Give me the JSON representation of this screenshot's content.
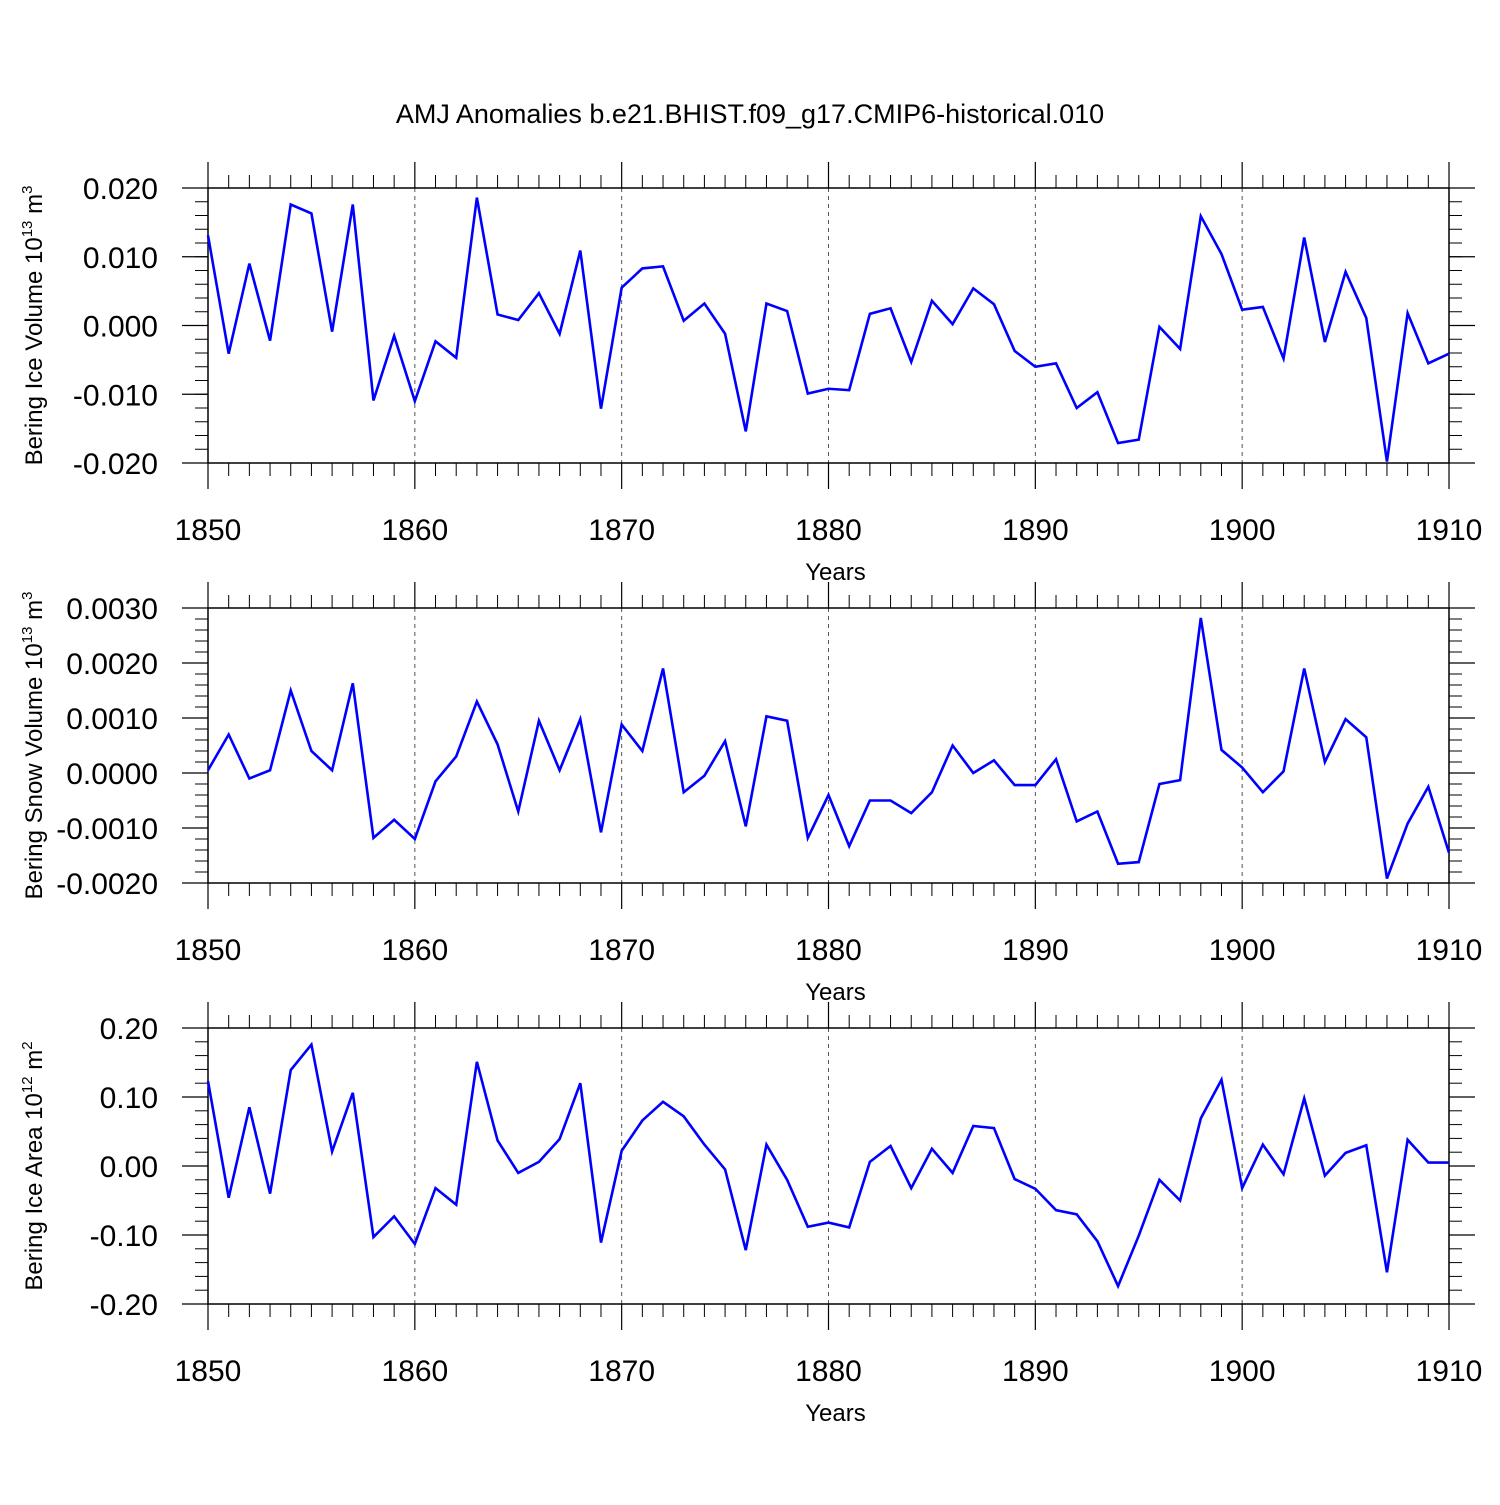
{
  "title": "AMJ Anomalies b.e21.BHIST.f09_g17.CMIP6-historical.010",
  "line_color": "#0000ff",
  "chart_data": [
    {
      "type": "line",
      "ylabel": {
        "main": "Bering Ice Volume 10",
        "exp": "13",
        "unit": " m",
        "unit_exp": "3"
      },
      "xlabel": "Years",
      "xlim": [
        1850,
        1910
      ],
      "x_ticks": [
        1850,
        1860,
        1870,
        1880,
        1890,
        1900,
        1910
      ],
      "x_tick_labels": [
        "1850",
        "1860",
        "1870",
        "1880",
        "1890",
        "1900",
        "1910"
      ],
      "ylim": [
        -0.02,
        0.02
      ],
      "y_ticks": [
        -0.02,
        -0.01,
        0,
        0.01,
        0.02
      ],
      "y_tick_labels": [
        "-0.020",
        "-0.010",
        "0.000",
        "0.010",
        "0.020"
      ],
      "y_minor_step": 0.002,
      "series": [
        {
          "name": "Bering Ice Volume",
          "values": [
            0.0131,
            -0.0041,
            0.009,
            -0.0022,
            0.0176,
            0.0163,
            -0.0009,
            0.0176,
            -0.0109,
            -0.0015,
            -0.011,
            -0.0023,
            -0.0047,
            0.0186,
            0.0016,
            0.0008,
            0.0047,
            -0.0012,
            0.0109,
            -0.0121,
            0.0055,
            0.0083,
            0.0086,
            0.0007,
            0.0032,
            -0.0012,
            -0.0154,
            0.0032,
            0.0021,
            -0.0099,
            -0.0092,
            -0.0094,
            0.0017,
            0.0025,
            -0.0053,
            0.0036,
            0.0002,
            0.0054,
            0.0031,
            -0.0037,
            -0.006,
            -0.0055,
            -0.012,
            -0.0097,
            -0.0171,
            -0.0166,
            -0.0002,
            -0.0034,
            0.0159,
            0.0104,
            0.0023,
            0.0027,
            -0.0048,
            0.0128,
            -0.0024,
            0.0078,
            0.0011,
            -0.0198,
            0.0018,
            -0.0055,
            -0.0041
          ]
        }
      ]
    },
    {
      "type": "line",
      "ylabel": {
        "main": "Bering Snow Volume 10",
        "exp": "13",
        "unit": " m",
        "unit_exp": "3"
      },
      "xlabel": "Years",
      "xlim": [
        1850,
        1910
      ],
      "x_ticks": [
        1850,
        1860,
        1870,
        1880,
        1890,
        1900,
        1910
      ],
      "x_tick_labels": [
        "1850",
        "1860",
        "1870",
        "1880",
        "1890",
        "1900",
        "1910"
      ],
      "ylim": [
        -0.002,
        0.003
      ],
      "y_ticks": [
        -0.002,
        -0.001,
        0,
        0.001,
        0.002,
        0.003
      ],
      "y_tick_labels": [
        "-0.0020",
        "-0.0010",
        "0.0000",
        "0.0010",
        "0.0020",
        "0.0030"
      ],
      "y_minor_step": 0.0002,
      "series": [
        {
          "name": "Bering Snow Volume",
          "values": [
            5e-05,
            0.0007,
            -0.0001,
            5e-05,
            0.0015,
            0.0004,
            5e-05,
            0.00163,
            -0.00118,
            -0.00085,
            -0.0012,
            -0.00015,
            0.0003,
            0.0013,
            0.00052,
            -0.0007,
            0.00095,
            5e-05,
            0.00098,
            -0.00108,
            0.00088,
            0.0004,
            0.0019,
            -0.00035,
            -5e-05,
            0.00058,
            -0.00097,
            0.00103,
            0.00095,
            -0.00118,
            -0.0004,
            -0.00133,
            -0.0005,
            -0.0005,
            -0.00073,
            -0.00035,
            0.0005,
            0.0,
            0.00023,
            -0.00022,
            -0.00022,
            0.00025,
            -0.00088,
            -0.0007,
            -0.00165,
            -0.00162,
            -0.0002,
            -0.00013,
            0.00282,
            0.00042,
            0.0001,
            -0.00035,
            3e-05,
            0.0019,
            0.0002,
            0.00098,
            0.00065,
            -0.00192,
            -0.00092,
            -0.00025,
            -0.00145
          ]
        }
      ]
    },
    {
      "type": "line",
      "ylabel": {
        "main": "Bering Ice Area 10",
        "exp": "12",
        "unit": " m",
        "unit_exp": "2"
      },
      "xlabel": "Years",
      "xlim": [
        1850,
        1910
      ],
      "x_ticks": [
        1850,
        1860,
        1870,
        1880,
        1890,
        1900,
        1910
      ],
      "x_tick_labels": [
        "1850",
        "1860",
        "1870",
        "1880",
        "1890",
        "1900",
        "1910"
      ],
      "ylim": [
        -0.2,
        0.2
      ],
      "y_ticks": [
        -0.2,
        -0.1,
        0,
        0.1,
        0.2
      ],
      "y_tick_labels": [
        "-0.20",
        "-0.10",
        "0.00",
        "0.10",
        "0.20"
      ],
      "y_minor_step": 0.02,
      "series": [
        {
          "name": "Bering Ice Area",
          "values": [
            0.123,
            -0.046,
            0.085,
            -0.04,
            0.139,
            0.176,
            0.021,
            0.106,
            -0.103,
            -0.073,
            -0.113,
            -0.032,
            -0.056,
            0.151,
            0.037,
            -0.01,
            0.006,
            0.039,
            0.12,
            -0.111,
            0.022,
            0.066,
            0.093,
            0.072,
            0.031,
            -0.005,
            -0.122,
            0.031,
            -0.02,
            -0.088,
            -0.082,
            -0.089,
            0.006,
            0.029,
            -0.032,
            0.025,
            -0.01,
            0.058,
            0.055,
            -0.019,
            -0.033,
            -0.064,
            -0.07,
            -0.109,
            -0.174,
            -0.101,
            -0.02,
            -0.05,
            0.069,
            0.125,
            -0.032,
            0.031,
            -0.012,
            0.098,
            -0.014,
            0.019,
            0.03,
            -0.154,
            0.038,
            0.005,
            0.005
          ]
        }
      ]
    }
  ]
}
